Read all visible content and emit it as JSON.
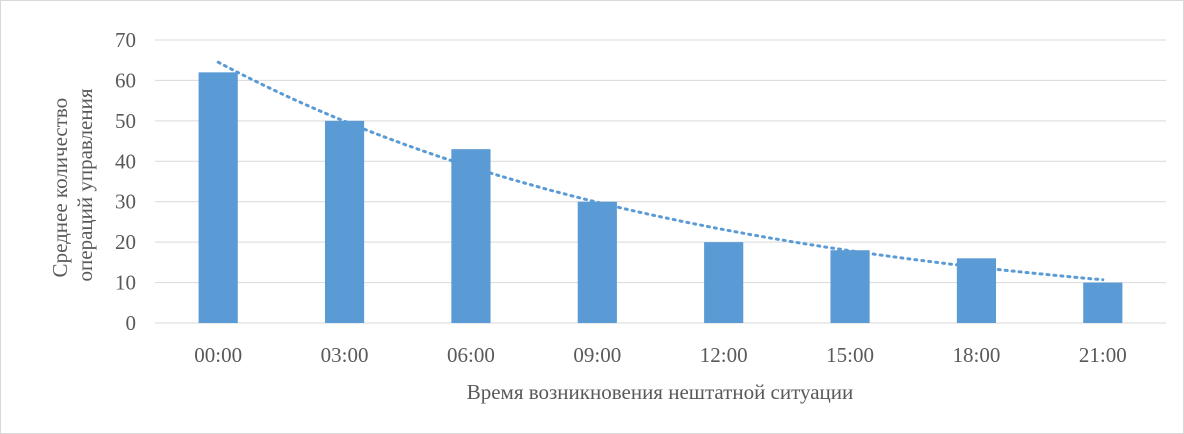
{
  "chart_data": {
    "type": "bar",
    "title": "",
    "xlabel": "Время возникновения нештатной ситуации",
    "ylabel_lines": [
      "Среднее количество",
      "операций управления"
    ],
    "categories": [
      "00:00",
      "03:00",
      "06:00",
      "09:00",
      "12:00",
      "15:00",
      "18:00",
      "21:00"
    ],
    "values": [
      62,
      50,
      43,
      30,
      20,
      18,
      16,
      10
    ],
    "ylim": [
      0,
      70
    ],
    "yticks": [
      0,
      10,
      20,
      30,
      40,
      50,
      60,
      70
    ],
    "grid": true,
    "legend": "none",
    "trendline": {
      "type": "exponential",
      "style": "dotted",
      "start_value": 64.5,
      "end_value": 10.7
    },
    "colors": {
      "bar": "#5b9bd5",
      "trendline": "#5b9bd5",
      "grid": "#d9d9d9",
      "text": "#595959"
    }
  }
}
